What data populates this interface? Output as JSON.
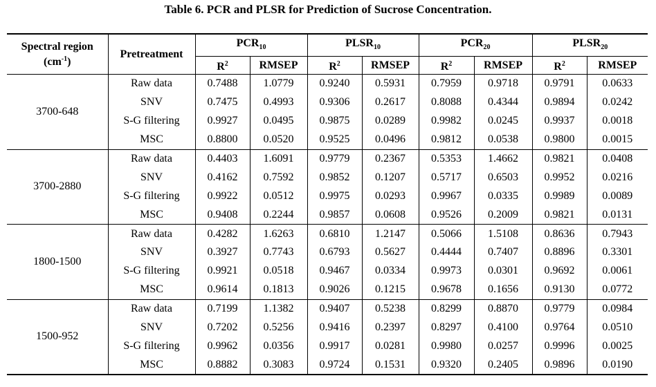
{
  "caption": "Table 6. PCR and PLSR for Prediction of Sucrose Concentration.",
  "header": {
    "spectral_region": "Spectral region",
    "spectral_unit_open": "(cm",
    "spectral_unit_sup": "-1",
    "spectral_unit_close": ")",
    "pretreatment": "Pretreatment",
    "models": [
      {
        "base": "PCR",
        "sub": "10"
      },
      {
        "base": "PLSR",
        "sub": "10"
      },
      {
        "base": "PCR",
        "sub": "20"
      },
      {
        "base": "PLSR",
        "sub": "20"
      }
    ],
    "r_base": "R",
    "r_sup": "2",
    "rmsep": "RMSEP"
  },
  "groups": [
    {
      "region": "3700-648",
      "rows": [
        {
          "pre": "Raw data",
          "v": [
            "0.7488",
            "1.0779",
            "0.9240",
            "0.5931",
            "0.7959",
            "0.9718",
            "0.9791",
            "0.0633"
          ]
        },
        {
          "pre": "SNV",
          "v": [
            "0.7475",
            "0.4993",
            "0.9306",
            "0.2617",
            "0.8088",
            "0.4344",
            "0.9894",
            "0.0242"
          ]
        },
        {
          "pre": "S-G filtering",
          "v": [
            "0.9927",
            "0.0495",
            "0.9875",
            "0.0289",
            "0.9982",
            "0.0245",
            "0.9937",
            "0.0018"
          ]
        },
        {
          "pre": "MSC",
          "v": [
            "0.8800",
            "0.0520",
            "0.9525",
            "0.0496",
            "0.9812",
            "0.0538",
            "0.9800",
            "0.0015"
          ]
        }
      ]
    },
    {
      "region": "3700-2880",
      "rows": [
        {
          "pre": "Raw data",
          "v": [
            "0.4403",
            "1.6091",
            "0.9779",
            "0.2367",
            "0.5353",
            "1.4662",
            "0.9821",
            "0.0408"
          ]
        },
        {
          "pre": "SNV",
          "v": [
            "0.4162",
            "0.7592",
            "0.9852",
            "0.1207",
            "0.5717",
            "0.6503",
            "0.9952",
            "0.0216"
          ]
        },
        {
          "pre": "S-G filtering",
          "v": [
            "0.9922",
            "0.0512",
            "0.9975",
            "0.0293",
            "0.9967",
            "0.0335",
            "0.9989",
            "0.0089"
          ]
        },
        {
          "pre": "MSC",
          "v": [
            "0.9408",
            "0.2244",
            "0.9857",
            "0.0608",
            "0.9526",
            "0.2009",
            "0.9821",
            "0.0131"
          ]
        }
      ]
    },
    {
      "region": "1800-1500",
      "rows": [
        {
          "pre": "Raw data",
          "v": [
            "0.4282",
            "1.6263",
            "0.6810",
            "1.2147",
            "0.5066",
            "1.5108",
            "0.8636",
            "0.7943"
          ]
        },
        {
          "pre": "SNV",
          "v": [
            "0.3927",
            "0.7743",
            "0.6793",
            "0.5627",
            "0.4444",
            "0.7407",
            "0.8896",
            "0.3301"
          ]
        },
        {
          "pre": "S-G filtering",
          "v": [
            "0.9921",
            "0.0518",
            "0.9467",
            "0.0334",
            "0.9973",
            "0.0301",
            "0.9692",
            "0.0061"
          ]
        },
        {
          "pre": "MSC",
          "v": [
            "0.9614",
            "0.1813",
            "0.9026",
            "0.1215",
            "0.9678",
            "0.1656",
            "0.9130",
            "0.0772"
          ]
        }
      ]
    },
    {
      "region": "1500-952",
      "rows": [
        {
          "pre": "Raw data",
          "v": [
            "0.7199",
            "1.1382",
            "0.9407",
            "0.5238",
            "0.8299",
            "0.8870",
            "0.9779",
            "0.0984"
          ]
        },
        {
          "pre": "SNV",
          "v": [
            "0.7202",
            "0.5256",
            "0.9416",
            "0.2397",
            "0.8297",
            "0.4100",
            "0.9764",
            "0.0510"
          ]
        },
        {
          "pre": "S-G filtering",
          "v": [
            "0.9962",
            "0.0356",
            "0.9917",
            "0.0281",
            "0.9980",
            "0.0257",
            "0.9996",
            "0.0025"
          ]
        },
        {
          "pre": "MSC",
          "v": [
            "0.8882",
            "0.3083",
            "0.9724",
            "0.1531",
            "0.9320",
            "0.2405",
            "0.9896",
            "0.0190"
          ]
        }
      ]
    }
  ]
}
